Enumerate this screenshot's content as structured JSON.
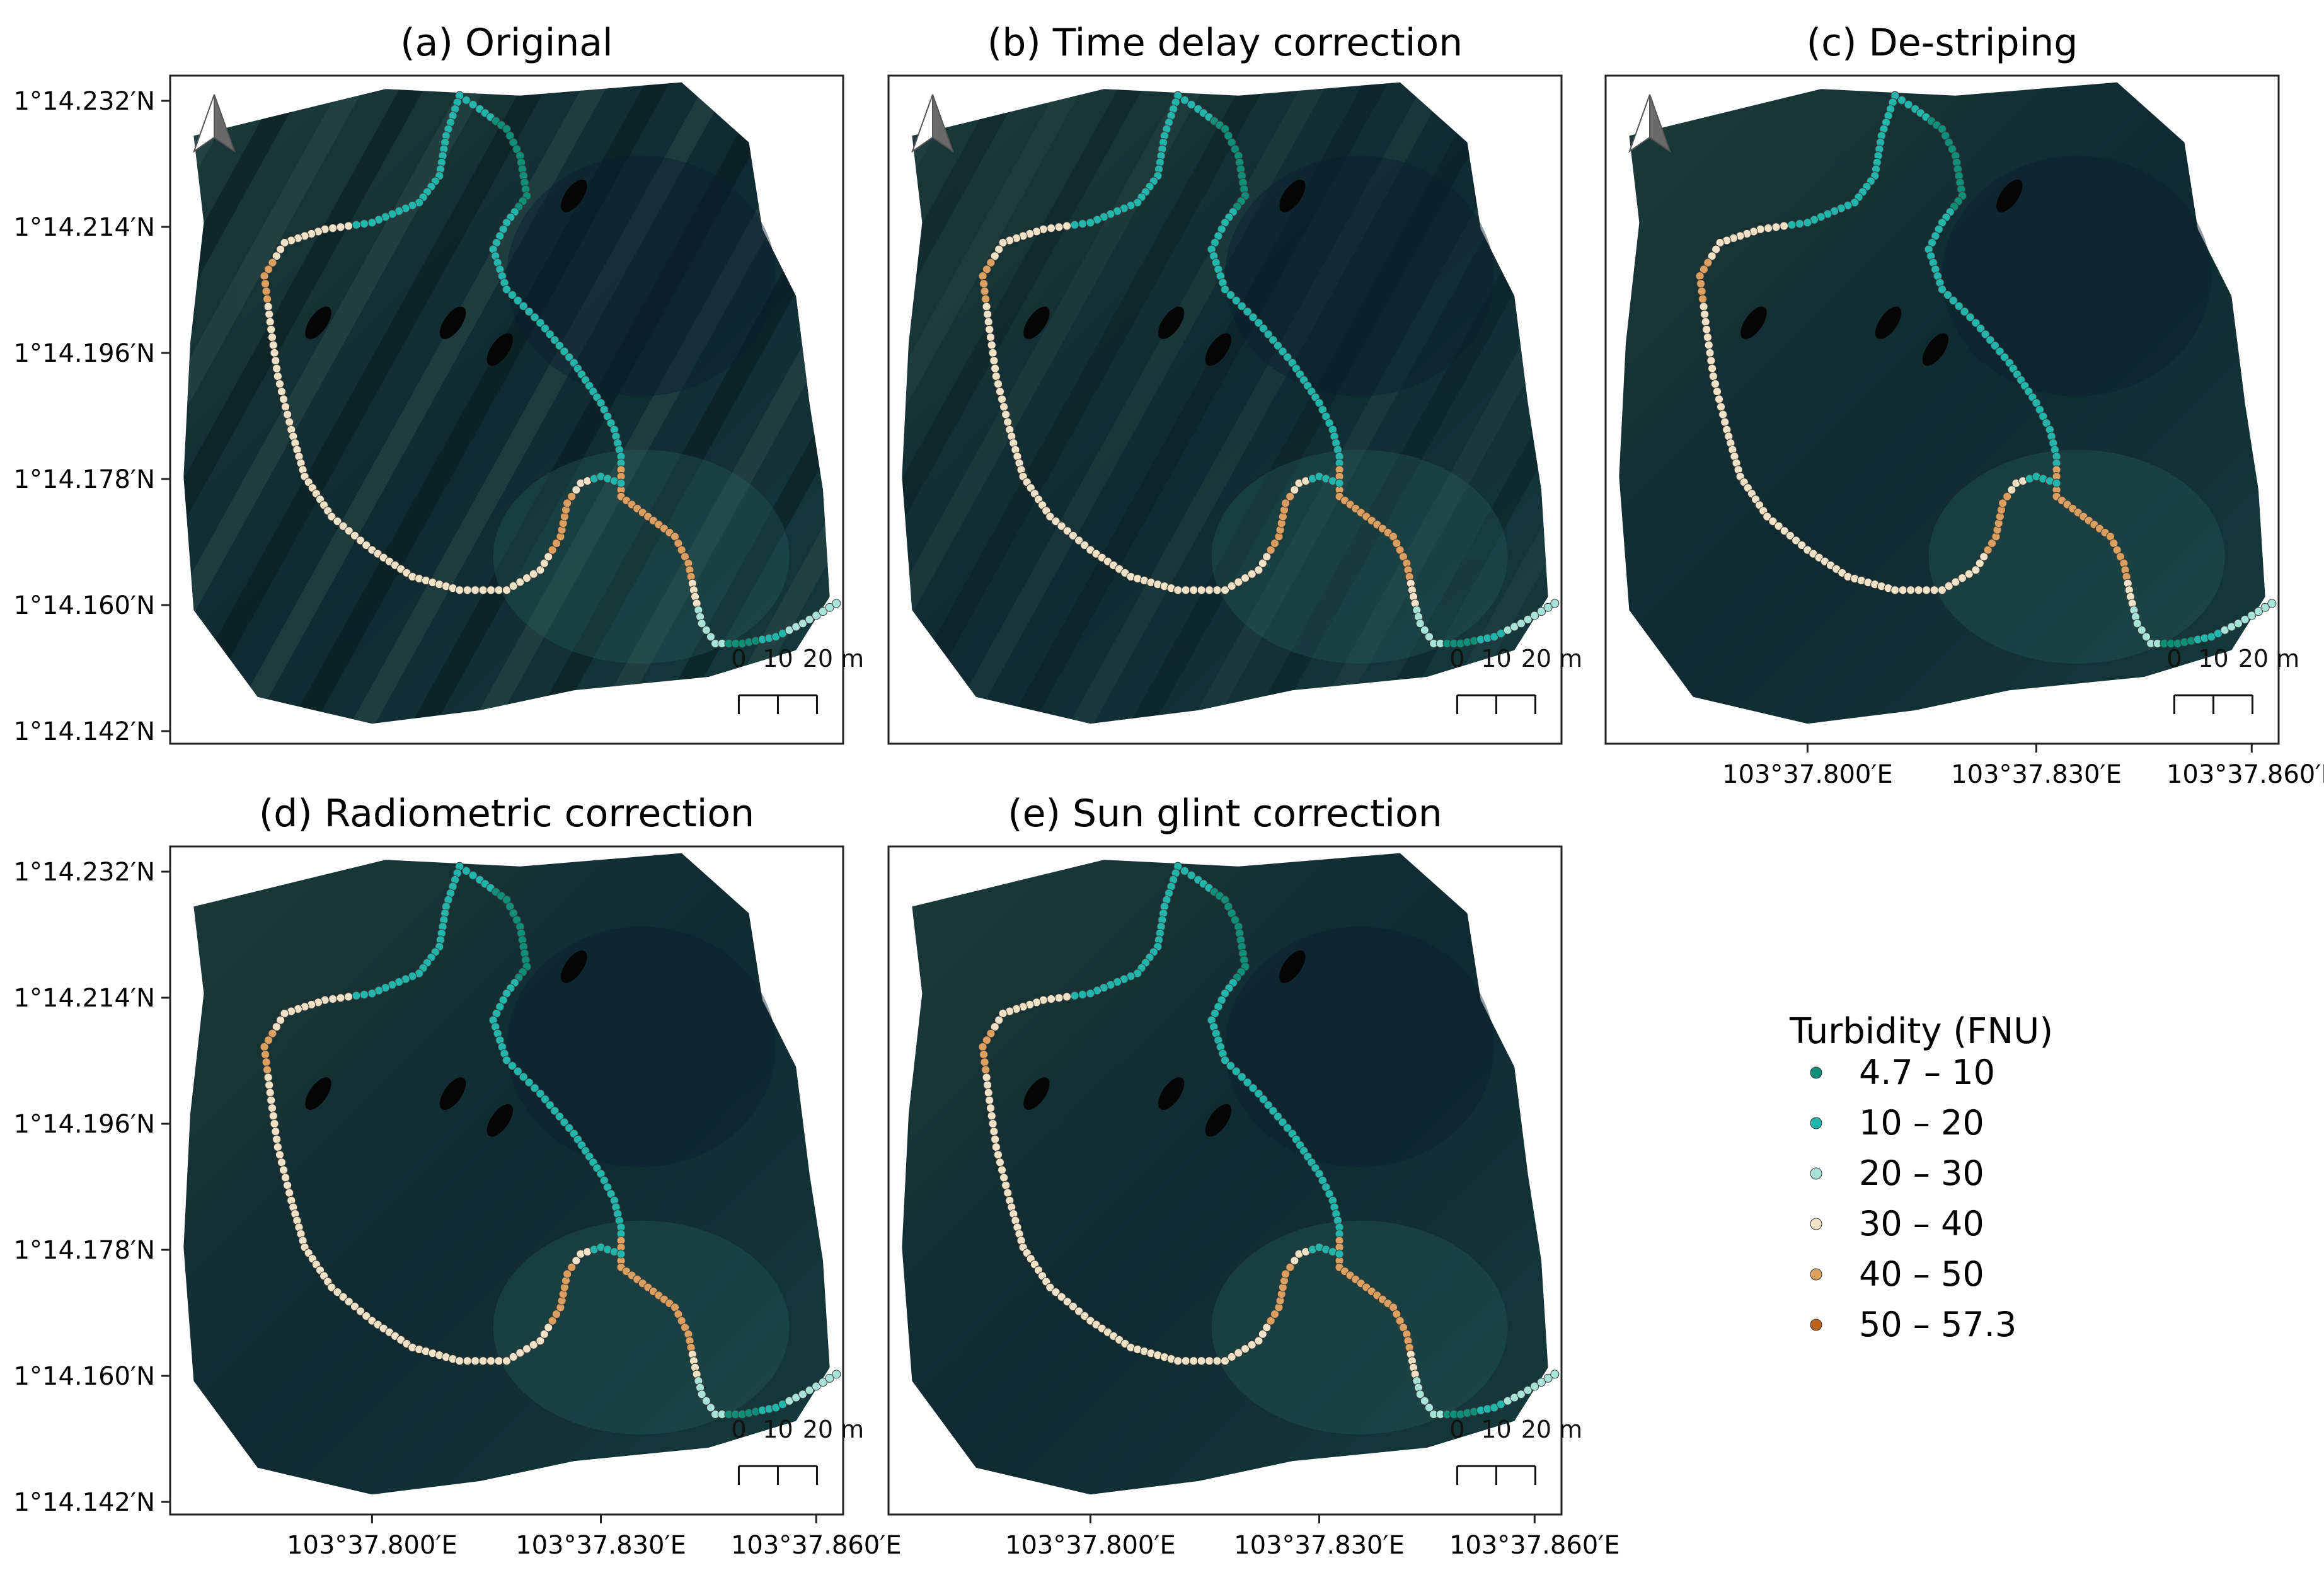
{
  "figure": {
    "panels": [
      {
        "id": "a",
        "title": "(a) Original",
        "stripes": true,
        "stripe_opacity": 0.55
      },
      {
        "id": "b",
        "title": "(b) Time delay correction",
        "stripes": true,
        "stripe_opacity": 0.35
      },
      {
        "id": "c",
        "title": "(c) De-striping",
        "stripes": false,
        "stripe_opacity": 0
      },
      {
        "id": "d",
        "title": "(d) Radiometric correction",
        "stripes": false,
        "stripe_opacity": 0
      },
      {
        "id": "e",
        "title": "(e) Sun glint correction",
        "stripes": false,
        "stripe_opacity": 0
      }
    ],
    "lat_labels": [
      "1°14.232′N",
      "1°14.214′N",
      "1°14.196′N",
      "1°14.178′N",
      "1°14.160′N",
      "1°14.142′N"
    ],
    "lon_labels": [
      "103°37.800′E",
      "103°37.830′E",
      "103°37.860′E"
    ],
    "scalebar": {
      "ticks": [
        "0",
        "10",
        "20 m"
      ]
    },
    "legend": {
      "title": "Turbidity (FNU)",
      "classes": [
        {
          "label": "4.7 – 10",
          "color": "#0d8f7a"
        },
        {
          "label": "10 – 20",
          "color": "#22b5ac"
        },
        {
          "label": "20 – 30",
          "color": "#a8e3d8"
        },
        {
          "label": "30 – 40",
          "color": "#efe2c6"
        },
        {
          "label": "40 – 50",
          "color": "#dba060"
        },
        {
          "label": "50 – 57.3",
          "color": "#b8621c"
        }
      ]
    },
    "north_arrow": "north-arrow-icon"
  }
}
